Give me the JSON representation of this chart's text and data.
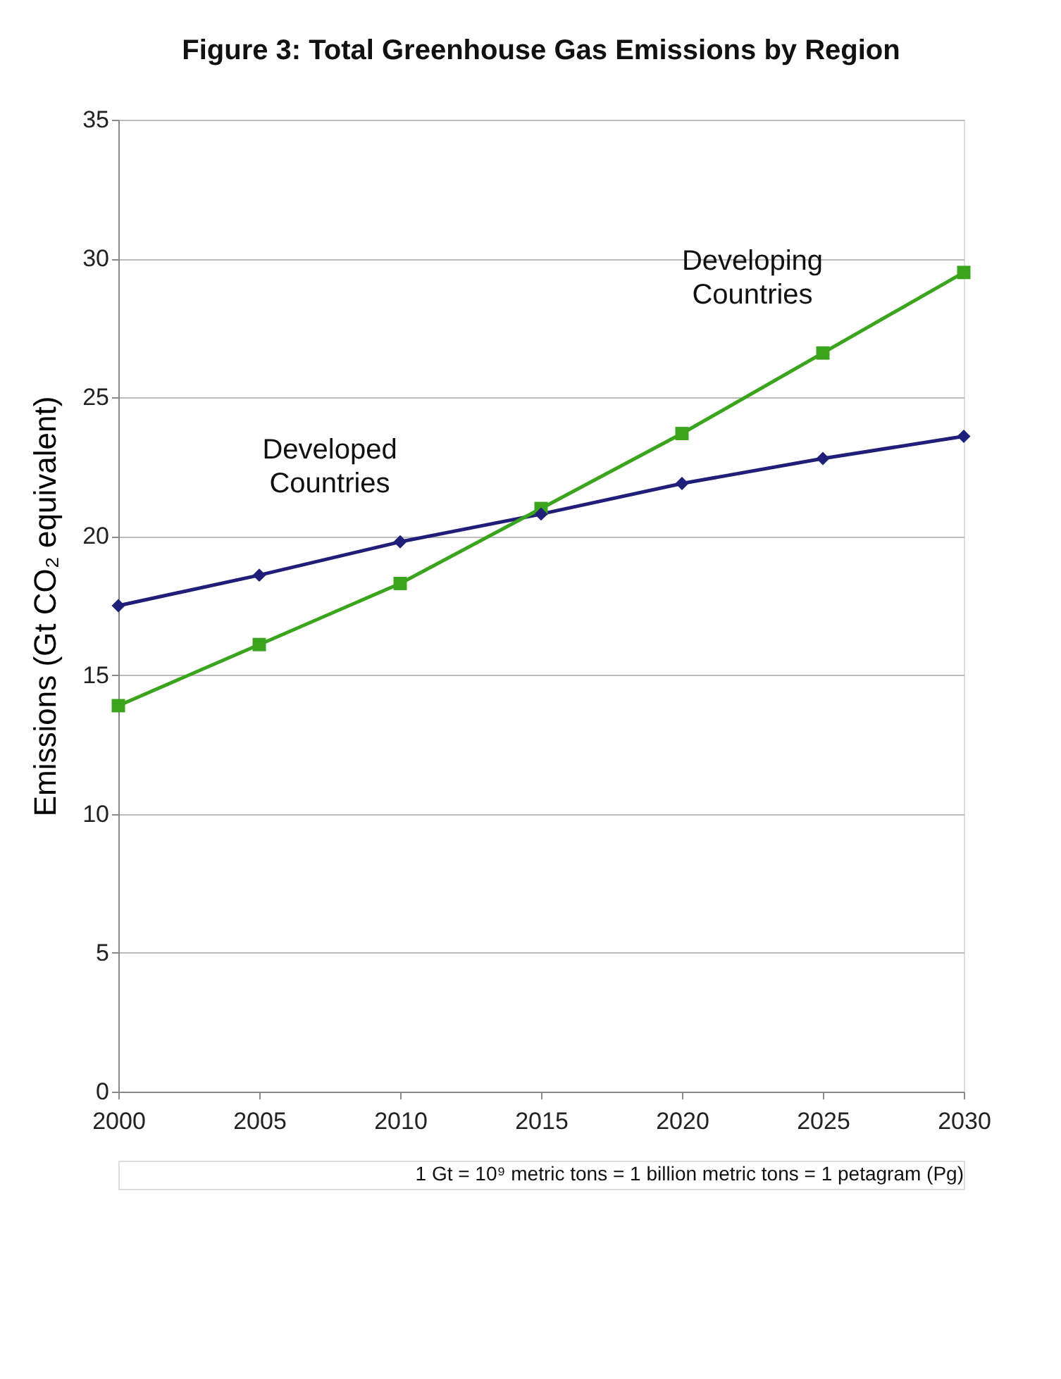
{
  "chart_data": {
    "type": "line",
    "title": "Figure 3: Total Greenhouse Gas Emissions by Region",
    "ylabel": "Emissions (Gt CO₂ equivalent)",
    "x": [
      2000,
      2005,
      2010,
      2015,
      2020,
      2025,
      2030
    ],
    "series": [
      {
        "name": "Developed Countries",
        "color": "#1f1f7a",
        "marker": "diamond",
        "values": [
          17.5,
          18.6,
          19.8,
          20.8,
          21.9,
          22.8,
          23.6
        ]
      },
      {
        "name": "Developing Countries",
        "color": "#3aa41c",
        "marker": "square",
        "values": [
          13.9,
          16.1,
          18.3,
          21.0,
          23.7,
          26.6,
          29.5
        ]
      }
    ],
    "xlim": [
      2000,
      2030
    ],
    "xticks": [
      2000,
      2005,
      2010,
      2015,
      2020,
      2025,
      2030
    ],
    "ylim": [
      0,
      35
    ],
    "yticks": [
      0,
      5,
      10,
      15,
      20,
      25,
      30,
      35
    ],
    "grid": "y",
    "line_style": "solid",
    "annotations": [
      "1 Gt = 10⁹ metric tons = 1 billion metric tons = 1 petagram (Pg)"
    ]
  }
}
